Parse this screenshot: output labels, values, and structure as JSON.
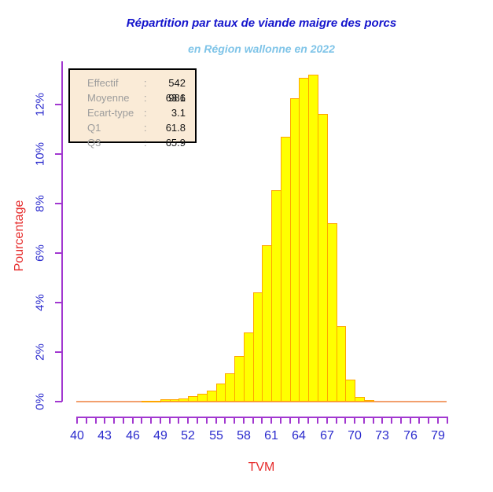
{
  "header": {
    "title": "Répartition par taux de viande maigre des porcs",
    "subtitle": "en Région wallonne en 2022"
  },
  "stats_box": {
    "rows": [
      {
        "label": "Effectif",
        "value": "542 981"
      },
      {
        "label": "Moyenne",
        "value": "63.6"
      },
      {
        "label": "Ecart-type",
        "value": "3.1"
      },
      {
        "label": "Q1",
        "value": "61.8"
      },
      {
        "label": "Q3",
        "value": "65.9"
      }
    ]
  },
  "chart_data": {
    "type": "bar",
    "title": "Répartition par taux de viande maigre des porcs",
    "subtitle": "en Région wallonne en 2022",
    "xlabel": "TVM",
    "ylabel": "Pourcentage",
    "x_range": [
      40,
      80
    ],
    "x_minor_tick_step": 1,
    "x_major_ticks": [
      40,
      43,
      46,
      49,
      52,
      55,
      58,
      61,
      64,
      67,
      70,
      73,
      76,
      79
    ],
    "y_ticks": [
      {
        "value": 0,
        "label": "0%"
      },
      {
        "value": 2,
        "label": "2%"
      },
      {
        "value": 4,
        "label": "4%"
      },
      {
        "value": 6,
        "label": "6%"
      },
      {
        "value": 8,
        "label": "8%"
      },
      {
        "value": 10,
        "label": "10%"
      },
      {
        "value": 12,
        "label": "12%"
      }
    ],
    "ylim": [
      0,
      13.75
    ],
    "grid": false,
    "bin_width": 1,
    "bin_starts": [
      47,
      48,
      49,
      50,
      51,
      52,
      53,
      54,
      55,
      56,
      57,
      58,
      59,
      60,
      61,
      62,
      63,
      64,
      65,
      66,
      67,
      68,
      69,
      70,
      71
    ],
    "values": [
      0.03,
      0.04,
      0.08,
      0.1,
      0.14,
      0.22,
      0.32,
      0.45,
      0.72,
      1.15,
      1.83,
      2.8,
      4.4,
      6.33,
      8.55,
      10.69,
      12.26,
      13.09,
      13.21,
      11.62,
      7.2,
      3.05,
      0.9,
      0.19,
      0.06
    ],
    "colors": {
      "title": "#1414CC",
      "subtitle": "#7FC4E8",
      "tick_label": "#2B2BCD",
      "axis": "#A238D0",
      "axis_title": "#E62C2C",
      "bar_fill": "#FFFF00",
      "bar_border": "#FFA500",
      "baseline": "#F2A06E",
      "stats_bg": "#FAEBD7",
      "stats_label": "#9C9C9C",
      "stats_value": "#141414"
    }
  }
}
